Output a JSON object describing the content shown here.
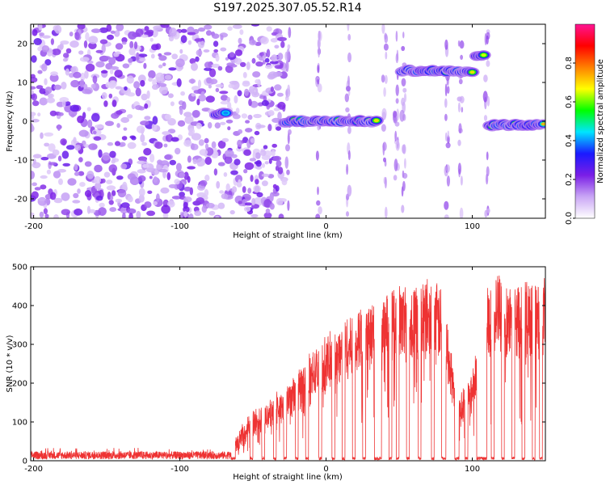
{
  "title": "S197.2025.307.05.52.R14",
  "chart_data": [
    {
      "type": "heatmap",
      "xlabel": "Height of straight line (km)",
      "ylabel": "Frequency (Hz)",
      "xlim": [
        -202,
        150
      ],
      "ylim": [
        -25,
        25
      ],
      "xticks": [
        -200,
        -100,
        0,
        100
      ],
      "yticks": [
        -20,
        -10,
        0,
        10,
        20
      ],
      "colorbar": {
        "label": "Normalized spectral amplitude",
        "range": [
          0,
          1
        ],
        "ticks": [
          "0.0",
          "0.2",
          "0.4",
          "0.6",
          "0.8"
        ],
        "tick_values": [
          0.0,
          0.2,
          0.4,
          0.6,
          0.8
        ],
        "stops": [
          "#ffffff",
          "#c9a6f5",
          "#7a1ee6",
          "#1a1aff",
          "#00e5ff",
          "#00ff00",
          "#ffff00",
          "#ff8000",
          "#ff0000",
          "#ff1493"
        ]
      },
      "ridges": [
        {
          "x_from": -75,
          "x_to": -68,
          "freq": 2,
          "amplitude": 0.45
        },
        {
          "x_from": -28,
          "x_to": 35,
          "freq": 0,
          "amplitude": 0.75
        },
        {
          "x_from": 52,
          "x_to": 100,
          "freq": 13,
          "amplitude": 0.8
        },
        {
          "x_from": 103,
          "x_to": 108,
          "freq": 17,
          "amplitude": 0.65
        },
        {
          "x_from": 112,
          "x_to": 150,
          "freq": -1,
          "amplitude": 0.85
        }
      ],
      "noise_region": {
        "x_from": -202,
        "x_to": -28,
        "amplitude": 0.25
      }
    },
    {
      "type": "line",
      "xlabel": "Height of straight line (km)",
      "ylabel": "SNR (10 * v/v)",
      "xlim": [
        -202,
        150
      ],
      "ylim": [
        0,
        500
      ],
      "xticks": [
        -200,
        -100,
        0,
        100
      ],
      "yticks": [
        0,
        100,
        200,
        300,
        400,
        500
      ],
      "series": [
        {
          "name": "SNR",
          "color": "#ee3333",
          "envelope_x": [
            -202,
            -100,
            -70,
            -60,
            -50,
            -40,
            -30,
            -20,
            -10,
            0,
            10,
            20,
            30,
            40,
            50,
            60,
            70,
            80,
            90,
            100,
            110,
            120,
            130,
            140,
            150
          ],
          "envelope_y": [
            15,
            18,
            20,
            60,
            120,
            140,
            170,
            220,
            260,
            300,
            330,
            370,
            390,
            400,
            430,
            440,
            440,
            420,
            150,
            220,
            440,
            450,
            440,
            430,
            440
          ],
          "gaps_x": [
            [
              -65,
              -62
            ],
            [
              -52,
              -50
            ],
            [
              -44,
              -42
            ],
            [
              -36,
              -34
            ],
            [
              -29,
              -27
            ],
            [
              -21,
              -19
            ],
            [
              -14,
              -12
            ],
            [
              -5,
              -3
            ],
            [
              4,
              6
            ],
            [
              11,
              13
            ],
            [
              18,
              20
            ],
            [
              25,
              27
            ],
            [
              33,
              38
            ],
            [
              43,
              45
            ],
            [
              48,
              50
            ],
            [
              55,
              57
            ],
            [
              63,
              65
            ],
            [
              72,
              74
            ],
            [
              79,
              82
            ],
            [
              88,
              91
            ],
            [
              95,
              97
            ],
            [
              103,
              110
            ],
            [
              113,
              115
            ],
            [
              120,
              122
            ],
            [
              127,
              129
            ],
            [
              134,
              136
            ],
            [
              141,
              143
            ],
            [
              146,
              148
            ]
          ]
        }
      ]
    }
  ]
}
